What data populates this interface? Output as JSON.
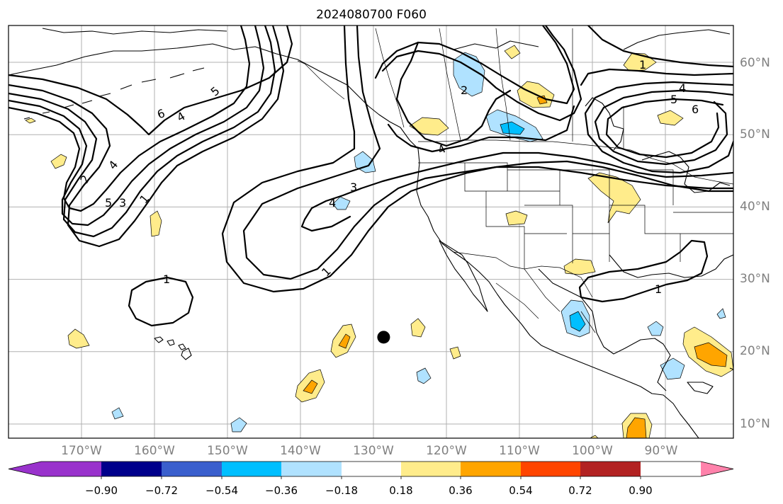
{
  "title": "2024080700 F060",
  "lat_labels": [
    "60°N",
    "50°N",
    "40°N",
    "30°N",
    "20°N",
    "10°N"
  ],
  "lon_labels": [
    "170°W",
    "160°W",
    "150°W",
    "140°W",
    "130°W",
    "120°W",
    "110°W",
    "100°W",
    "90°W"
  ],
  "colorbar": {
    "colors": [
      "#9932cc",
      "#00008b",
      "#3a5fcd",
      "#00bfff",
      "#b0e2ff",
      "#ffffff",
      "#ffec8b",
      "#ffa500",
      "#ff4500",
      "#b22222",
      "#ff82ab"
    ],
    "tick_labels": [
      "−0.90",
      "−0.72",
      "−0.54",
      "−0.36",
      "−0.18",
      "0.18",
      "0.36",
      "0.54",
      "0.72",
      "0.90"
    ]
  },
  "contour_labels": [
    "1",
    "2",
    "3",
    "4",
    "5",
    "6"
  ],
  "marker": {
    "name": "storm-center-marker",
    "lon": -128.6,
    "lat": 22.0,
    "color": "#000000"
  }
}
